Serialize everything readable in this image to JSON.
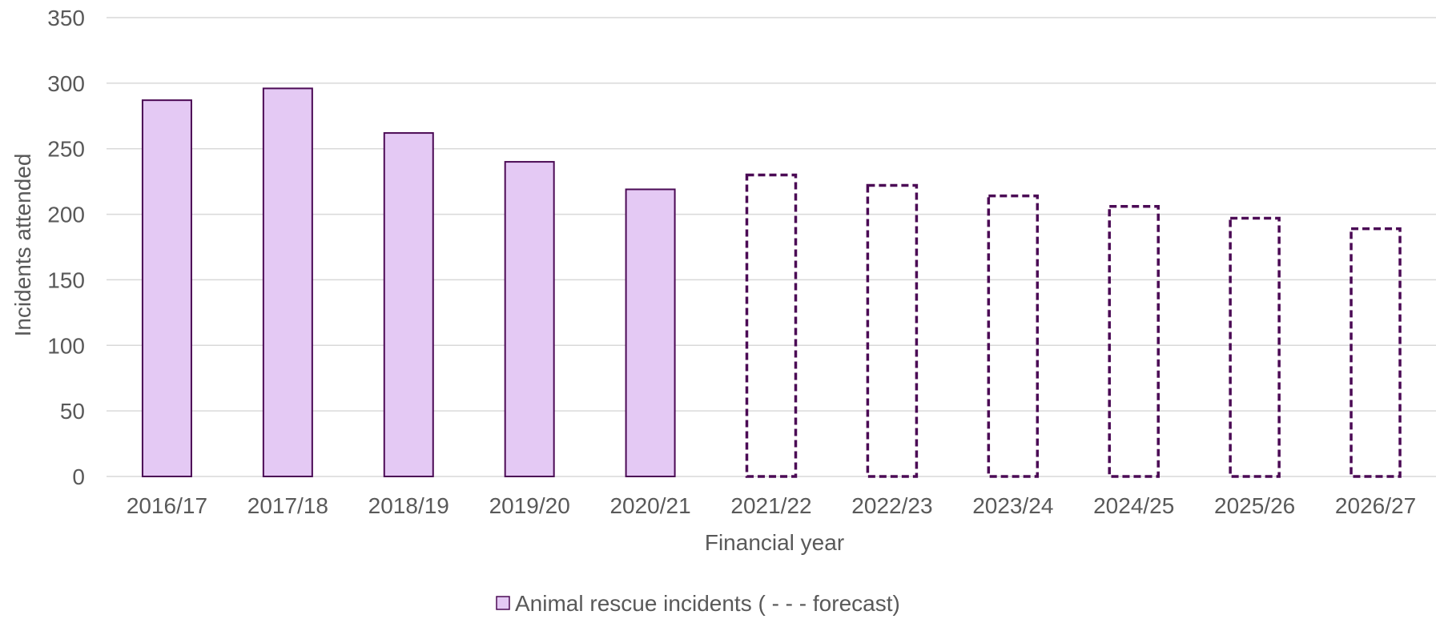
{
  "chart_data": {
    "type": "bar",
    "title": "",
    "xlabel": "Financial year",
    "ylabel": "Incidents attended",
    "ylim": [
      0,
      350
    ],
    "yticks": [
      0,
      50,
      100,
      150,
      200,
      250,
      300,
      350
    ],
    "grid": true,
    "legend_position": "bottom",
    "categories": [
      "2016/17",
      "2017/18",
      "2018/19",
      "2019/20",
      "2020/21",
      "2021/22",
      "2022/23",
      "2023/24",
      "2024/25",
      "2025/26",
      "2026/27"
    ],
    "series": [
      {
        "name": "Animal rescue incidents ( - - - forecast)",
        "values": [
          287,
          296,
          262,
          240,
          219,
          230,
          222,
          214,
          206,
          197,
          189
        ],
        "forecast": [
          false,
          false,
          false,
          false,
          false,
          true,
          true,
          true,
          true,
          true,
          true
        ]
      }
    ],
    "colors": {
      "bar_fill": "#e4c9f4",
      "bar_stroke": "#4b0a55",
      "forecast_stroke": "#4b0a55",
      "grid": "#d9d9d9",
      "text": "#595959"
    }
  }
}
